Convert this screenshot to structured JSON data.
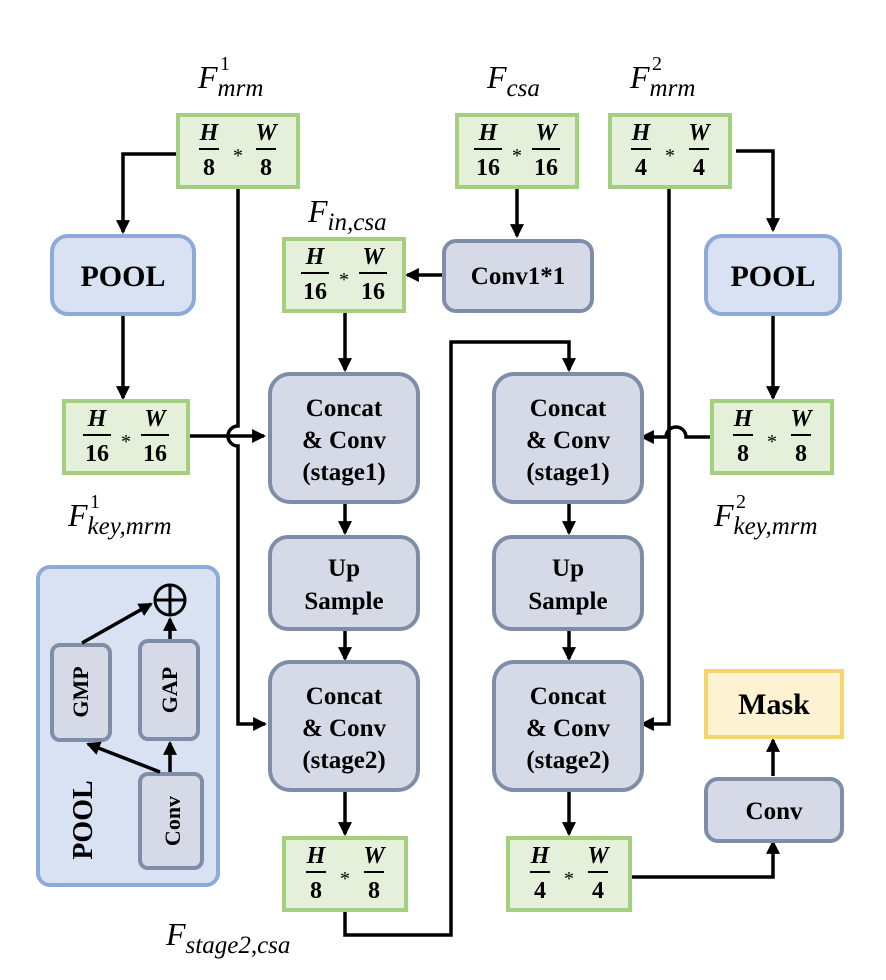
{
  "pool_blocks": {
    "left_label": "POOL",
    "right_label": "POOL"
  },
  "conv1x1_label": "Conv1*1",
  "mask_label": "Mask",
  "final_conv_label": "Conv",
  "left_branch": {
    "concat_stage1": [
      "Concat",
      "& Conv",
      "(stage1)"
    ],
    "upsample": [
      "Up",
      "Sample"
    ],
    "concat_stage2": [
      "Concat",
      "& Conv",
      "(stage2)"
    ]
  },
  "right_branch": {
    "concat_stage1": [
      "Concat",
      "& Conv",
      "(stage1)"
    ],
    "upsample": [
      "Up",
      "Sample"
    ],
    "concat_stage2": [
      "Concat",
      "& Conv",
      "(stage2)"
    ]
  },
  "feature_sizes": {
    "f_mrm1": {
      "num1": "H",
      "den1": "8",
      "num2": "W",
      "den2": "8"
    },
    "f_csa": {
      "num1": "H",
      "den1": "16",
      "num2": "W",
      "den2": "16"
    },
    "f_mrm2": {
      "num1": "H",
      "den1": "4",
      "num2": "W",
      "den2": "4"
    },
    "f_in_csa": {
      "num1": "H",
      "den1": "16",
      "num2": "W",
      "den2": "16"
    },
    "f_key_mrm1": {
      "num1": "H",
      "den1": "16",
      "num2": "W",
      "den2": "16"
    },
    "f_key_mrm2": {
      "num1": "H",
      "den1": "8",
      "num2": "W",
      "den2": "8"
    },
    "f_stage2_csa": {
      "num1": "H",
      "den1": "8",
      "num2": "W",
      "den2": "8"
    },
    "f_out_right": {
      "num1": "H",
      "den1": "4",
      "num2": "W",
      "den2": "4"
    },
    "star": "*"
  },
  "labels": {
    "f_mrm1": {
      "base": "F",
      "sub": "mrm",
      "sup": "1"
    },
    "f_csa": {
      "base": "F",
      "sub": "csa"
    },
    "f_mrm2": {
      "base": "F",
      "sub": "mrm",
      "sup": "2"
    },
    "f_in_csa": {
      "base": "F",
      "sub": "in,csa"
    },
    "f_key_mrm1": {
      "base": "F",
      "sub": "key,mrm",
      "sup": "1"
    },
    "f_key_mrm2": {
      "base": "F",
      "sub": "key,mrm",
      "sup": "2"
    },
    "f_stage2_csa": {
      "base": "F",
      "sub": "stage2,csa"
    }
  },
  "pool_detail": {
    "title": "POOL",
    "gmp": "GMP",
    "gap": "GAP",
    "conv": "Conv",
    "sum_symbol": "⊕"
  },
  "colors": {
    "green_fill": "#e4f0d9",
    "green_border": "#a3cf7e",
    "blue_fill": "#d9e2f3",
    "blue_border": "#8eaadb",
    "gray_fill": "#d5dae6",
    "gray_border": "#7f8ea8",
    "mask_fill": "#fdf3d3",
    "mask_border": "#f5d66e"
  }
}
